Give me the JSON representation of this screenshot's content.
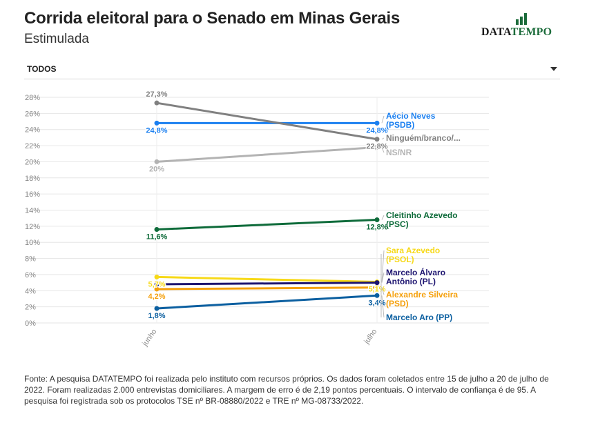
{
  "header": {
    "title": "Corrida eleitoral para o Senado em Minas Gerais",
    "subtitle": "Estimulada",
    "logo": {
      "text_a": "DATA",
      "text_b": "TEMPO",
      "color": "#1b6b3a"
    }
  },
  "filter": {
    "label": "TODOS",
    "icon": "chevron-down-icon"
  },
  "chart_data": {
    "type": "line",
    "x": [
      "junho",
      "julho"
    ],
    "ylim": [
      0,
      28
    ],
    "yticks": [
      "0%",
      "2%",
      "4%",
      "6%",
      "8%",
      "10%",
      "12%",
      "14%",
      "16%",
      "18%",
      "20%",
      "22%",
      "24%",
      "26%",
      "28%"
    ],
    "grid": true,
    "series": [
      {
        "name": "Aécio Neves (PSDB)",
        "label_lines": [
          "Aécio Neves",
          "(PSDB)"
        ],
        "color": "#1a7ff0",
        "values": [
          24.8,
          24.8
        ],
        "value_labels": [
          "24,8%",
          "24,8%"
        ]
      },
      {
        "name": "Ninguém/branco/nulo",
        "label_lines": [
          "Ninguém/branco/..."
        ],
        "color": "#808080",
        "values": [
          27.3,
          22.8
        ],
        "value_labels": [
          "27,3%",
          "22,8%"
        ]
      },
      {
        "name": "NS/NR",
        "label_lines": [
          "NS/NR"
        ],
        "color": "#b3b3b3",
        "values": [
          20.0,
          21.8
        ],
        "value_labels": [
          "20%",
          ""
        ]
      },
      {
        "name": "Cleitinho Azevedo (PSC)",
        "label_lines": [
          "Cleitinho Azevedo",
          "(PSC)"
        ],
        "color": "#0e6b3a",
        "values": [
          11.6,
          12.8
        ],
        "value_labels": [
          "11,6%",
          "12,8%"
        ]
      },
      {
        "name": "Sara Azevedo (PSOL)",
        "label_lines": [
          "Sara Azevedo",
          "(PSOL)"
        ],
        "color": "#f7d918",
        "values": [
          5.7,
          5.1
        ],
        "value_labels": [
          "5,7%",
          "5,1%"
        ]
      },
      {
        "name": "Marcelo Álvaro Antônio (PL)",
        "label_lines": [
          "Marcelo Álvaro",
          "Antônio (PL)"
        ],
        "color": "#1d1470",
        "values": [
          4.8,
          5.0
        ],
        "value_labels": [
          "",
          ""
        ]
      },
      {
        "name": "Alexandre Silveira (PSD)",
        "label_lines": [
          "Alexandre Silveira",
          "(PSD)"
        ],
        "color": "#f5a00c",
        "values": [
          4.2,
          4.4
        ],
        "value_labels": [
          "4,2%",
          ""
        ]
      },
      {
        "name": "Marcelo Aro (PP)",
        "label_lines": [
          "Marcelo Aro (PP)"
        ],
        "color": "#0b5fa0",
        "values": [
          1.8,
          3.4
        ],
        "value_labels": [
          "1,8%",
          "3,4%"
        ]
      }
    ]
  },
  "source": "Fonte: A pesquisa DATATEMPO foi realizada pelo instituto com recursos próprios. Os dados foram coletados entre 15 de julho a 20 de julho de 2022. Foram realizadas 2.000 entrevistas domiciliares. A margem de erro é de 2,19 pontos percentuais. O intervalo de confiança é de 95. A pesquisa foi registrada sob os protocolos TSE nº BR-08880/2022 e TRE nº MG-08733/2022."
}
